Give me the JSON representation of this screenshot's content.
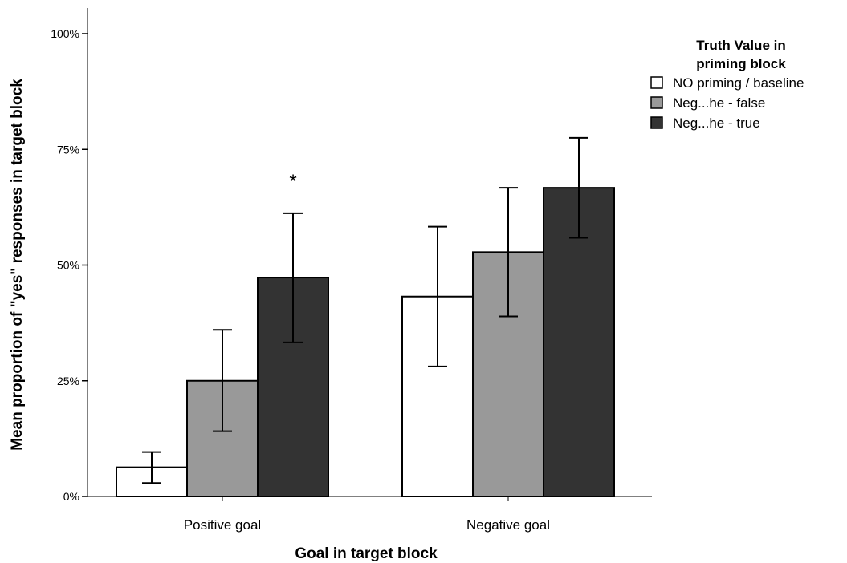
{
  "chart_data": {
    "type": "bar",
    "title": "",
    "xlabel": "Goal in target block",
    "ylabel": "Mean proportion of \"yes\" responses in target block",
    "ylim": [
      0,
      100
    ],
    "yticks": [
      0,
      25,
      50,
      75,
      100
    ],
    "ytick_labels": [
      "0%",
      "25%",
      "50%",
      "75%",
      "100%"
    ],
    "categories": [
      "Positive goal",
      "Negative goal"
    ],
    "legend": {
      "title_line1": "Truth Value in",
      "title_line2": "priming block",
      "placement": "top-right"
    },
    "series": [
      {
        "name": "NO priming / baseline",
        "color": "#ffffff",
        "values": [
          6.3,
          43.2
        ],
        "error_low": [
          2.9,
          28.1
        ],
        "error_high": [
          9.6,
          58.3
        ]
      },
      {
        "name": "Neg...he - false",
        "color": "#999999",
        "values": [
          25.0,
          52.8
        ],
        "error_low": [
          14.1,
          38.9
        ],
        "error_high": [
          36.0,
          66.7
        ]
      },
      {
        "name": "Neg...he - true",
        "color": "#333333",
        "values": [
          47.3,
          66.7
        ],
        "error_low": [
          33.3,
          55.9
        ],
        "error_high": [
          61.2,
          77.5
        ]
      }
    ],
    "annotations": [
      {
        "text": "*",
        "category": 0,
        "series": 2
      }
    ],
    "grid": false
  }
}
